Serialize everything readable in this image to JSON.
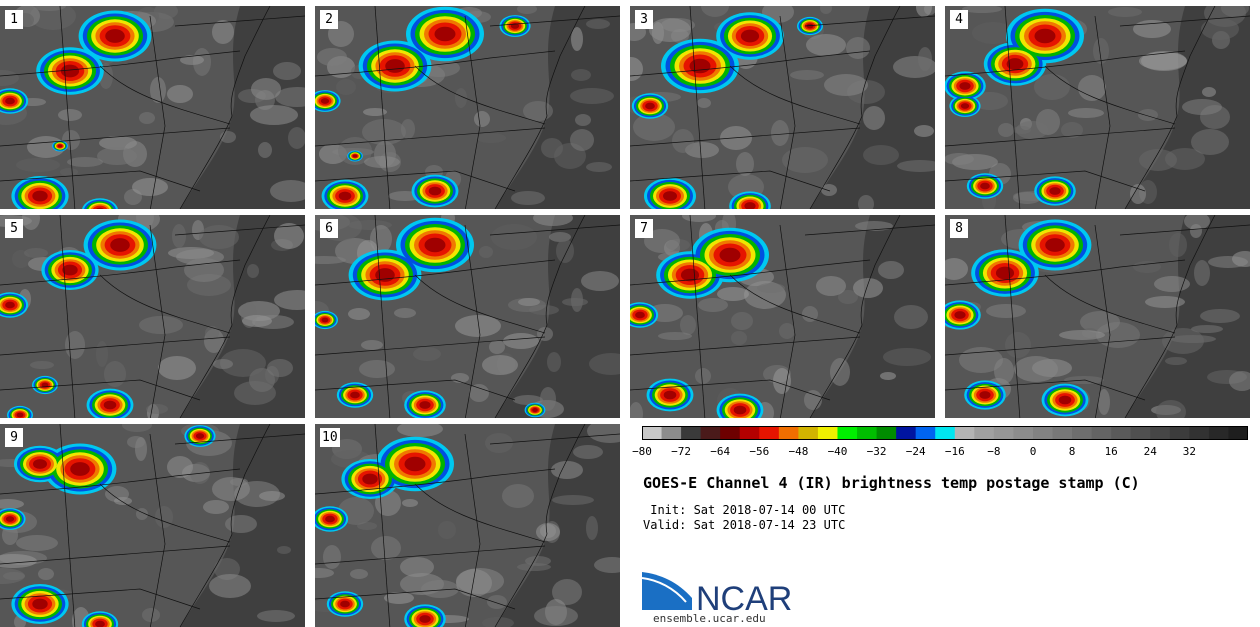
{
  "title": "GOES-E Channel 4 (IR) brightness temp postage stamp (C)",
  "init_line": " Init: Sat 2018-07-14 00 UTC",
  "valid_line": "Valid: Sat 2018-07-14 23 UTC",
  "logo_text": "NCAR",
  "url": "ensemble.ucar.edu",
  "panels": [
    {
      "label": "1"
    },
    {
      "label": "2"
    },
    {
      "label": "3"
    },
    {
      "label": "4"
    },
    {
      "label": "5"
    },
    {
      "label": "6"
    },
    {
      "label": "7"
    },
    {
      "label": "8"
    },
    {
      "label": "9"
    },
    {
      "label": "10"
    }
  ],
  "colorbar": {
    "min": -80,
    "max": 44,
    "ticks": [
      "−80",
      "−72",
      "−64",
      "−56",
      "−48",
      "−40",
      "−32",
      "−24",
      "−16",
      "−8",
      "0",
      "8",
      "16",
      "24",
      "32"
    ],
    "tick_values": [
      -80,
      -72,
      -64,
      -56,
      -48,
      -40,
      -32,
      -24,
      -16,
      -8,
      0,
      8,
      16,
      24,
      32
    ],
    "colors": [
      "#c8c8c8",
      "#8c8c8c",
      "#3a3a3a",
      "#4a1a1a",
      "#6e0000",
      "#b40000",
      "#e61400",
      "#f06e00",
      "#d2b400",
      "#f0f000",
      "#00f000",
      "#00be00",
      "#008c00",
      "#0014a0",
      "#0064f0",
      "#00e6f0",
      "#b4b4b4",
      "#a0a0a0",
      "#969696",
      "#8c8c8c",
      "#828282",
      "#787878",
      "#6e6e6e",
      "#646464",
      "#5a5a5a",
      "#505050",
      "#464646",
      "#3c3c3c",
      "#323232",
      "#282828",
      "#1e1e1e"
    ]
  }
}
